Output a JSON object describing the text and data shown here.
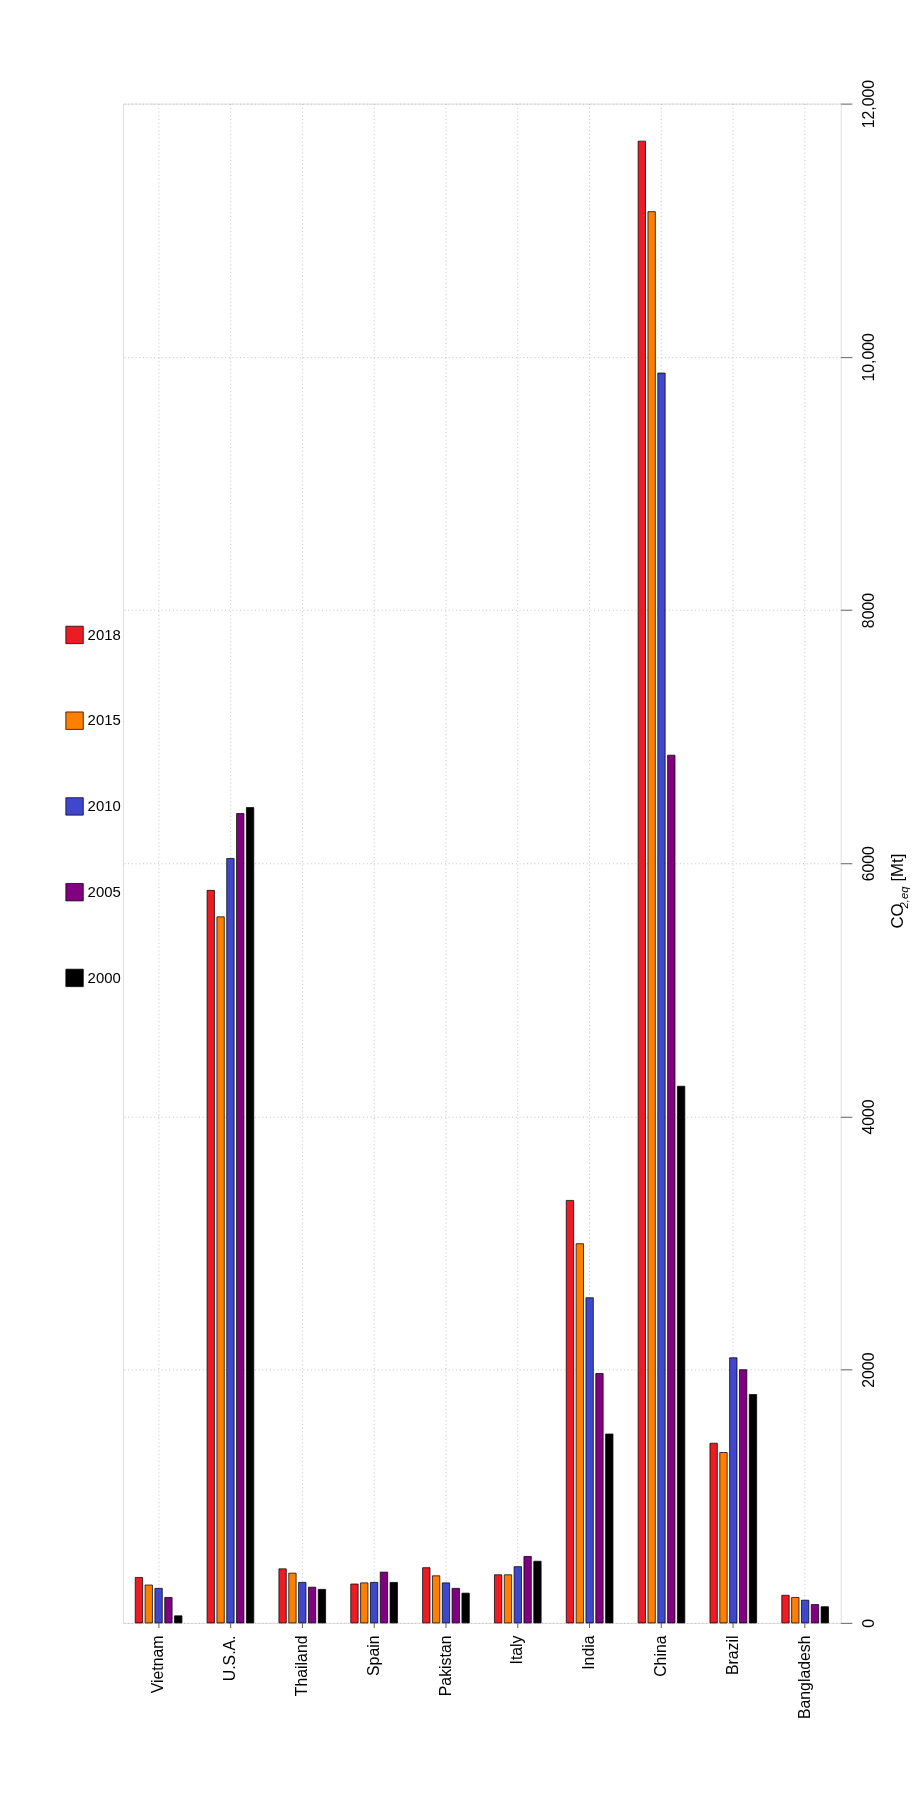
{
  "chart_data": {
    "type": "bar",
    "ylabel": "CO$_{2,eq}$ [Mt]",
    "categories": [
      "Vietnam",
      "U.S.A.",
      "Thailand",
      "Spain",
      "Pakistan",
      "Italy",
      "India",
      "China",
      "Brazil",
      "Bangladesh"
    ],
    "series": [
      {
        "name": "2018",
        "color": "#ed1c24",
        "values": [
          359,
          5786,
          427,
          307,
          436,
          380,
          3337,
          11704,
          1419,
          218
        ]
      },
      {
        "name": "2015",
        "color": "#ff7f00",
        "values": [
          299,
          5577,
          393,
          316,
          372,
          380,
          2995,
          11147,
          1346,
          201
        ]
      },
      {
        "name": "2010",
        "color": "#3f48cc",
        "values": [
          273,
          6038,
          320,
          320,
          316,
          444,
          2568,
          9872,
          2094,
          179
        ]
      },
      {
        "name": "2005",
        "color": "#800080",
        "values": [
          201,
          6393,
          282,
          401,
          273,
          525,
          1970,
          6854,
          2000,
          145
        ]
      },
      {
        "name": "2000",
        "color": "#000000",
        "values": [
          56,
          6440,
          265,
          320,
          235,
          487,
          1492,
          4239,
          1804,
          128
        ]
      }
    ],
    "ylim": [
      0,
      12000
    ],
    "yticks": [
      0,
      2000,
      4000,
      6000,
      8000,
      {
        "value": 10000,
        "label": "10,000"
      },
      {
        "value": 12000,
        "label": "12,000"
      }
    ],
    "grid": true,
    "legend": "left"
  }
}
